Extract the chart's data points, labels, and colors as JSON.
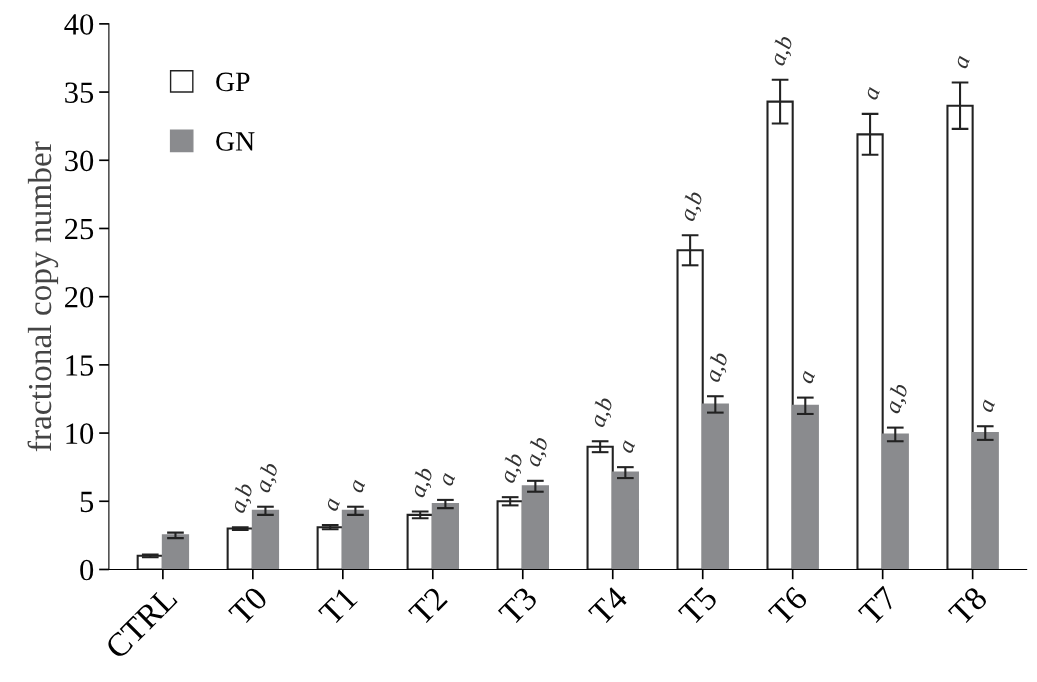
{
  "chart_data": {
    "type": "bar",
    "ylabel": "fractional copy number",
    "categories": [
      "CTRL",
      "T0",
      "T1",
      "T2",
      "T3",
      "T4",
      "T5",
      "T6",
      "T7",
      "T8"
    ],
    "series": [
      {
        "name": "GP",
        "color": "#ffffff",
        "values": [
          1.0,
          3.0,
          3.1,
          4.0,
          5.0,
          9.0,
          23.4,
          34.3,
          31.9,
          34.0
        ],
        "errors": [
          0.1,
          0.1,
          0.15,
          0.25,
          0.3,
          0.4,
          1.1,
          1.6,
          1.5,
          1.7
        ],
        "value_labels": [
          null,
          "a,b",
          "a",
          "a,b",
          "a,b",
          "a,b",
          "a,b",
          "a,b",
          "a",
          "a"
        ]
      },
      {
        "name": "GN",
        "color": "#8a8b8e",
        "values": [
          2.5,
          4.3,
          4.3,
          4.8,
          6.1,
          7.1,
          12.1,
          12.0,
          9.9,
          10.0
        ],
        "errors": [
          0.2,
          0.3,
          0.3,
          0.3,
          0.4,
          0.4,
          0.6,
          0.6,
          0.5,
          0.5
        ],
        "value_labels": [
          null,
          "a,b",
          "a",
          "a",
          "a,b",
          "a",
          "a,b",
          "a",
          "a,b",
          "a"
        ]
      }
    ],
    "ylim": [
      0,
      40
    ],
    "yticks": [
      0,
      5,
      10,
      15,
      20,
      25,
      30,
      35,
      40
    ],
    "legend": "top left",
    "grid": false
  }
}
